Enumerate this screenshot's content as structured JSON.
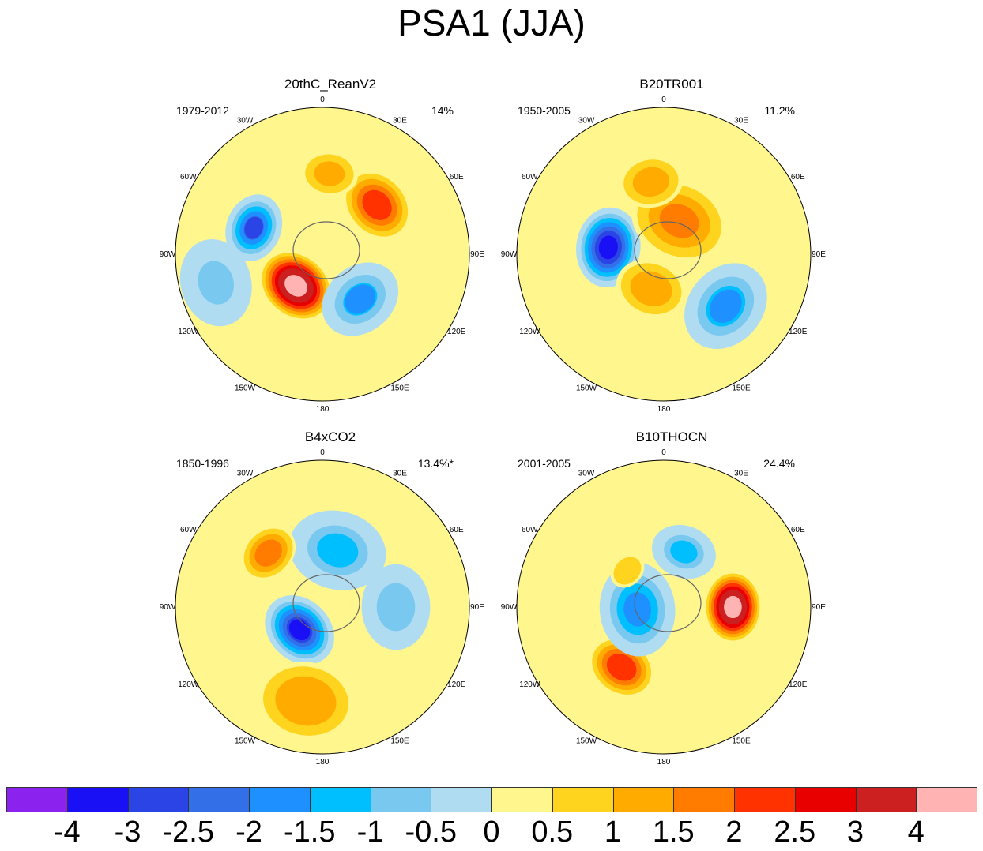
{
  "title": "PSA1 (JJA)",
  "panels": [
    {
      "name": "20thC_ReanV2",
      "period": "1979-2012",
      "variance": "14%",
      "anomalies": [
        {
          "lon": -69,
          "r": 0.5,
          "value": -2.6,
          "size": 0.2
        },
        {
          "lon": 48,
          "r": 0.5,
          "value": 2.3,
          "size": 0.22
        },
        {
          "lon": -140,
          "r": 0.28,
          "value": 4.2,
          "size": 0.22
        },
        {
          "lon": 140,
          "r": 0.4,
          "value": -1.6,
          "size": 0.25
        },
        {
          "lon": 5,
          "r": 0.55,
          "value": 1.1,
          "size": 0.18
        },
        {
          "lon": -105,
          "r": 0.75,
          "value": -1.0,
          "size": 0.28
        }
      ]
    },
    {
      "name": "B20TR001",
      "period": "1950-2005",
      "variance": "11.2%",
      "anomalies": [
        {
          "lon": -83,
          "r": 0.38,
          "value": -3.6,
          "size": 0.23
        },
        {
          "lon": 25,
          "r": 0.25,
          "value": 1.5,
          "size": 0.3
        },
        {
          "lon": 130,
          "r": 0.55,
          "value": -1.7,
          "size": 0.28
        },
        {
          "lon": -160,
          "r": 0.25,
          "value": 1.3,
          "size": 0.22
        },
        {
          "lon": -10,
          "r": 0.5,
          "value": 1.2,
          "size": 0.2
        }
      ]
    },
    {
      "name": "B4xCO2",
      "period": "1850-1996",
      "variance": "13.4%*",
      "anomalies": [
        {
          "lon": 15,
          "r": 0.4,
          "value": -1.4,
          "size": 0.3
        },
        {
          "lon": -45,
          "r": 0.52,
          "value": 1.8,
          "size": 0.18
        },
        {
          "lon": -135,
          "r": 0.22,
          "value": -3.3,
          "size": 0.22
        },
        {
          "lon": -170,
          "r": 0.65,
          "value": 1.4,
          "size": 0.3
        },
        {
          "lon": 90,
          "r": 0.5,
          "value": -0.8,
          "size": 0.28
        }
      ]
    },
    {
      "name": "B10THOCN",
      "period": "2001-2005",
      "variance": "24.4%",
      "anomalies": [
        {
          "lon": 90,
          "r": 0.47,
          "value": 4.2,
          "size": 0.2
        },
        {
          "lon": -145,
          "r": 0.5,
          "value": 2.4,
          "size": 0.2
        },
        {
          "lon": -95,
          "r": 0.18,
          "value": -2.0,
          "size": 0.28
        },
        {
          "lon": 20,
          "r": 0.4,
          "value": -1.4,
          "size": 0.2
        },
        {
          "lon": -45,
          "r": 0.35,
          "value": 0.9,
          "size": 0.12
        }
      ]
    }
  ],
  "lon_labels": [
    "0",
    "30E",
    "60E",
    "90E",
    "120E",
    "150E",
    "180",
    "150W",
    "120W",
    "90W",
    "60W",
    "30W"
  ],
  "colorbar": {
    "labels": [
      "-4",
      "-3",
      "-2.5",
      "-2",
      "-1.5",
      "-1",
      "-0.5",
      "0",
      "0.5",
      "1",
      "1.5",
      "2",
      "2.5",
      "3",
      "4"
    ],
    "levels": [
      -4,
      -3,
      -2.5,
      -2,
      -1.5,
      -1,
      -0.5,
      0,
      0.5,
      1,
      1.5,
      2,
      2.5,
      3,
      4
    ],
    "colors": [
      "#8b22ee",
      "#1a10f5",
      "#2b44e6",
      "#3370e8",
      "#1e90ff",
      "#00bfff",
      "#79c8f0",
      "#b0dcf2",
      "#fff68e",
      "#ffd41e",
      "#ffab00",
      "#ff7c00",
      "#ff3200",
      "#e80000",
      "#cc1f1f",
      "#ffb3b3"
    ]
  }
}
